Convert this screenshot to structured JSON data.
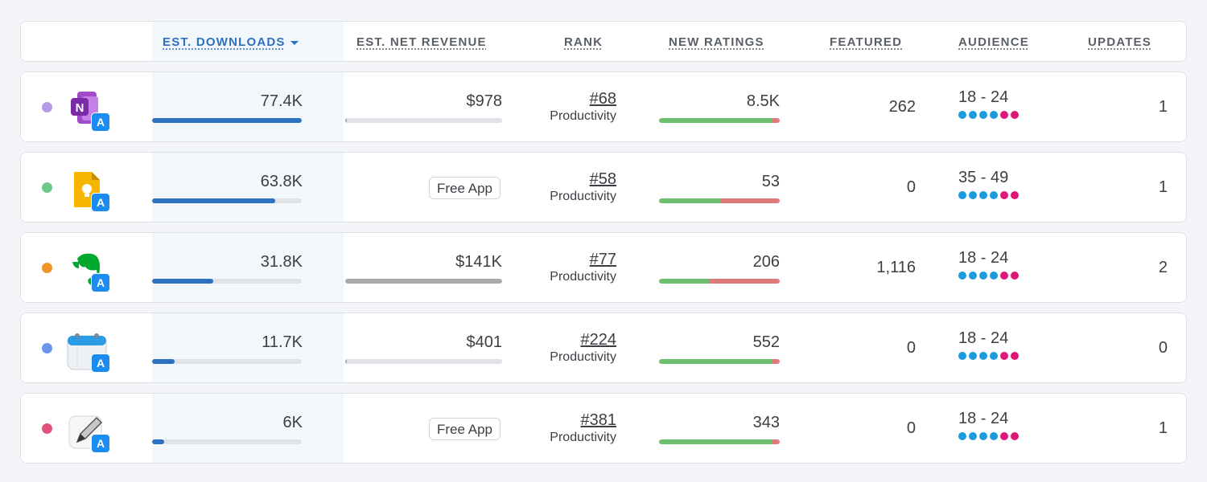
{
  "header": {
    "downloads": "EST. DOWNLOADS",
    "revenue": "EST. NET REVENUE",
    "rank": "RANK",
    "ratings": "NEW RATINGS",
    "featured": "FEATURED",
    "audience": "AUDIENCE",
    "updates": "UPDATES"
  },
  "colors": {
    "accent": "#2d6fc1",
    "bar_track": "#dfe3e7",
    "revenue_fill": "#a9a9a9",
    "rating_pos": "#6cbf6c",
    "rating_neg": "#de7a7a",
    "aud_blue": "#1a9be0",
    "aud_pink": "#e0157a",
    "app_store_badge": "#1a8cf2"
  },
  "rows": [
    {
      "dot_color": "#b39ae6",
      "icon": "onenote-icon",
      "icon_letter": "N",
      "downloads": "77.4K",
      "downloads_level": 1.0,
      "revenue": "$978",
      "revenue_level": 0.01,
      "revenue_free": false,
      "rank": "#68",
      "rank_category": "Productivity",
      "ratings": "8.5K",
      "ratings_positive_share": 0.93,
      "featured": "262",
      "audience": "18 - 24",
      "updates": "1"
    },
    {
      "dot_color": "#6cc98a",
      "icon": "keep-notes-icon",
      "icon_letter": "",
      "downloads": "63.8K",
      "downloads_level": 0.82,
      "revenue": "Free App",
      "revenue_level": 0,
      "revenue_free": true,
      "rank": "#58",
      "rank_category": "Productivity",
      "ratings": "53",
      "ratings_positive_share": 0.51,
      "featured": "0",
      "audience": "35 - 49",
      "updates": "1"
    },
    {
      "dot_color": "#f0942a",
      "icon": "evernote-icon",
      "icon_letter": "",
      "downloads": "31.8K",
      "downloads_level": 0.41,
      "revenue": "$141K",
      "revenue_level": 1.0,
      "revenue_free": false,
      "rank": "#77",
      "rank_category": "Productivity",
      "ratings": "206",
      "ratings_positive_share": 0.41,
      "featured": "1,116",
      "audience": "18 - 24",
      "updates": "2"
    },
    {
      "dot_color": "#6c94ee",
      "icon": "calendar-notes-icon",
      "icon_letter": "",
      "downloads": "11.7K",
      "downloads_level": 0.15,
      "revenue": "$401",
      "revenue_level": 0.005,
      "revenue_free": false,
      "rank": "#224",
      "rank_category": "Productivity",
      "ratings": "552",
      "ratings_positive_share": 0.93,
      "featured": "0",
      "audience": "18 - 24",
      "updates": "0"
    },
    {
      "dot_color": "#e0537d",
      "icon": "pencil-notes-icon",
      "icon_letter": "",
      "downloads": "6K",
      "downloads_level": 0.08,
      "revenue": "Free App",
      "revenue_level": 0,
      "revenue_free": true,
      "rank": "#381",
      "rank_category": "Productivity",
      "ratings": "343",
      "ratings_positive_share": 0.93,
      "featured": "0",
      "audience": "18 - 24",
      "updates": "1"
    }
  ]
}
